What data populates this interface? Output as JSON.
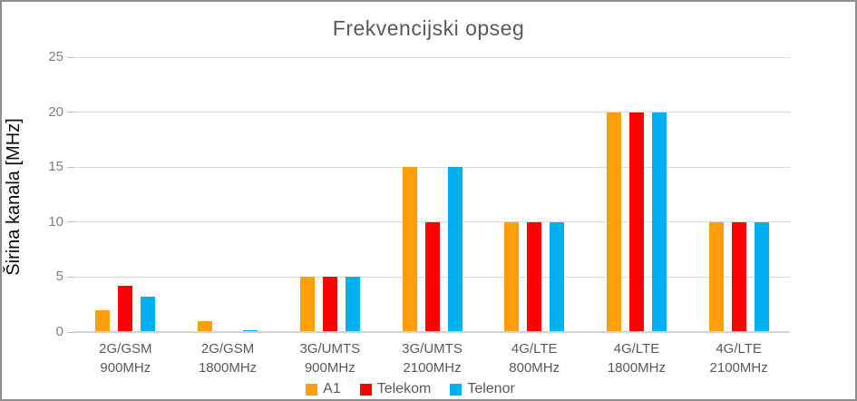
{
  "frame": {
    "border_color": "#8f8f8f",
    "background": "#ffffff"
  },
  "chart_data": {
    "type": "bar",
    "title": "Frekvencijski opseg",
    "ylabel": "Širina kanala [MHz]",
    "xlabel": "",
    "ylim": [
      0,
      25
    ],
    "yticks": [
      0,
      5,
      10,
      15,
      20,
      25
    ],
    "grid": true,
    "legend_position": "bottom",
    "categories": [
      [
        "2G/GSM",
        "900MHz"
      ],
      [
        "2G/GSM",
        "1800MHz"
      ],
      [
        "3G/UMTS",
        "900MHz"
      ],
      [
        "3G/UMTS",
        "2100MHz"
      ],
      [
        "4G/LTE",
        "800MHz"
      ],
      [
        "4G/LTE",
        "1800MHz"
      ],
      [
        "4G/LTE",
        "2100MHz"
      ]
    ],
    "series": [
      {
        "name": "A1",
        "color": "#FFA00A",
        "values": [
          2,
          1,
          5,
          15,
          10,
          20,
          10
        ]
      },
      {
        "name": "Telekom",
        "color": "#FF0000",
        "values": [
          4.2,
          0,
          5,
          10,
          10,
          20,
          10
        ]
      },
      {
        "name": "Telenor",
        "color": "#00B0F0",
        "values": [
          3.2,
          0.2,
          5,
          15,
          10,
          20,
          10
        ]
      }
    ],
    "text_colors": {
      "title": "#595959",
      "axis_ticks": "#7f7f7f",
      "category_labels": "#595959",
      "y_axis_title": "#0a0a0a",
      "legend": "#595959"
    },
    "gridline_color": "#d9d9d9"
  }
}
